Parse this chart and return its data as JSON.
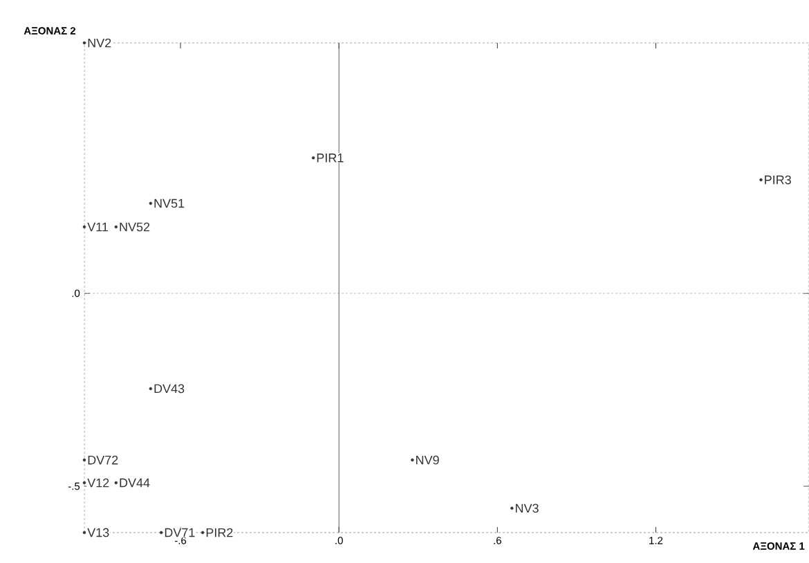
{
  "chart_data": {
    "type": "scatter",
    "xlabel": "ΑΞΟΝΑΣ 1",
    "ylabel": "ΑΞΟΝΑΣ 2",
    "x": [
      -0.964,
      -0.097,
      1.598,
      -0.713,
      -0.964,
      -0.844,
      -0.713,
      -0.964,
      -0.964,
      -0.844,
      0.278,
      0.655,
      -0.964,
      -0.673,
      -0.516
    ],
    "values": [
      0.649,
      0.351,
      0.294,
      0.233,
      0.172,
      0.172,
      -0.247,
      -0.432,
      -0.491,
      -0.491,
      -0.432,
      -0.557,
      -0.62,
      -0.62,
      -0.62
    ],
    "value_labels": [
      "NV2",
      "PIR1",
      "PIR3",
      "NV51",
      "V11",
      "NV52",
      "DV43",
      "DV72",
      "V12",
      "DV44",
      "NV9",
      "NV3",
      "V13",
      "DV71",
      "PIR2"
    ],
    "color": "#333333",
    "marker": "circle",
    "xlim": [
      -0.964,
      1.78
    ],
    "ylim": [
      -0.62,
      0.649
    ],
    "xticks": [
      {
        "value": -0.6,
        "label": "-.6"
      },
      {
        "value": 0,
        "label": ".0"
      },
      {
        "value": 0.6,
        "label": ".6"
      },
      {
        "value": 1.2,
        "label": "1.2"
      }
    ],
    "yticks": [
      {
        "value": -0.5,
        "label": "-.5"
      },
      {
        "value": 0,
        "label": ".0"
      }
    ],
    "grid": false,
    "ref_lines": [
      {
        "axis": "x",
        "value": 0,
        "line_style": "solid"
      },
      {
        "axis": "y",
        "value": 0,
        "line_style": "dashed"
      }
    ]
  }
}
